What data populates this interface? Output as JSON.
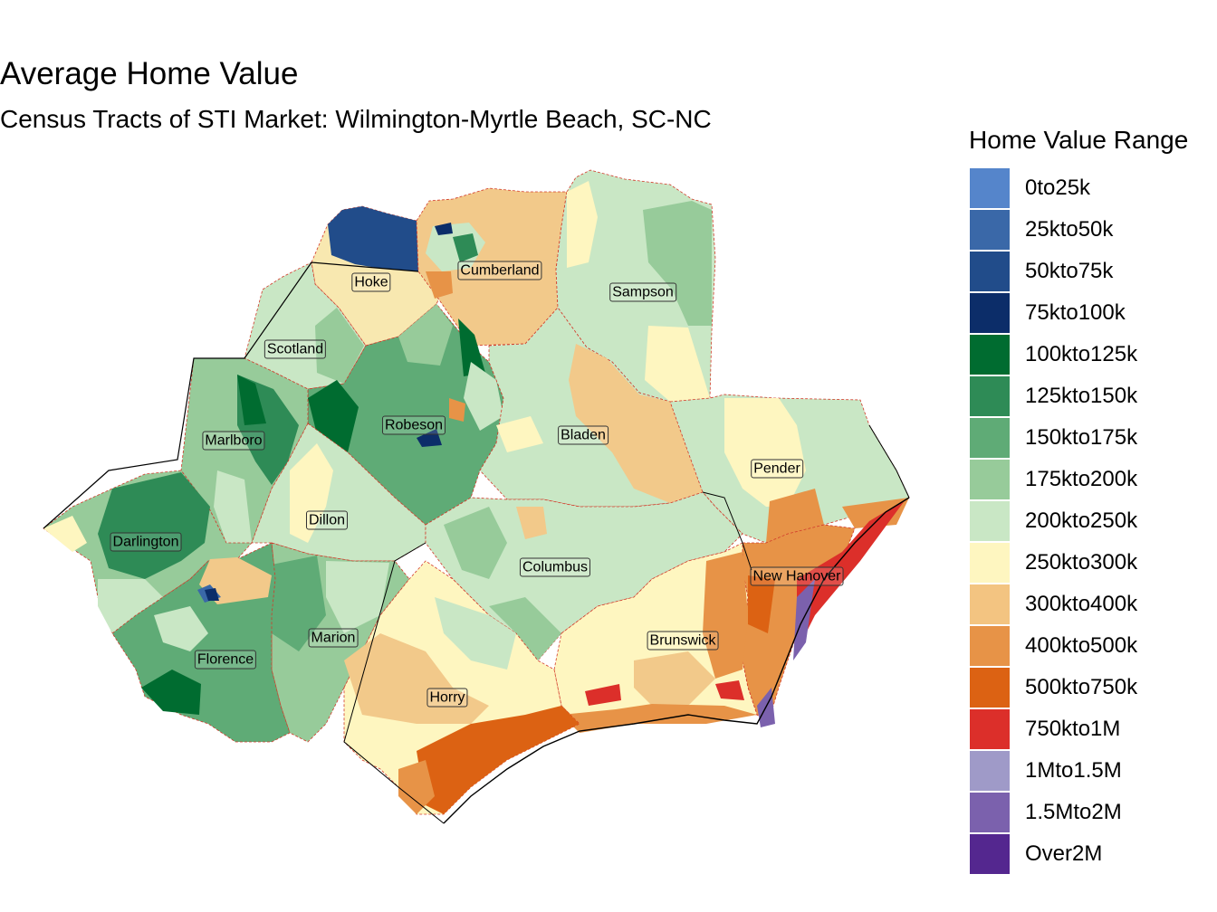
{
  "title": "Average Home Value",
  "subtitle": "Census Tracts of STI Market: Wilmington-Myrtle Beach, SC-NC",
  "legend": {
    "title": "Home Value Range",
    "items": [
      {
        "label": "0to25k",
        "color": "#5585cb"
      },
      {
        "label": "25kto50k",
        "color": "#3a68a8"
      },
      {
        "label": "50kto75k",
        "color": "#214c8a"
      },
      {
        "label": "75kto100k",
        "color": "#0c2d69"
      },
      {
        "label": "100kto125k",
        "color": "#006c30"
      },
      {
        "label": "125kto150k",
        "color": "#2e8b56"
      },
      {
        "label": "150kto175k",
        "color": "#5fab76"
      },
      {
        "label": "175kto200k",
        "color": "#97cb9a"
      },
      {
        "label": "200kto250k",
        "color": "#c9e7c5"
      },
      {
        "label": "250kto300k",
        "color": "#fef6c0"
      },
      {
        "label": "300kto400k",
        "color": "#f3c481"
      },
      {
        "label": "400kto500k",
        "color": "#e79347"
      },
      {
        "label": "500kto750k",
        "color": "#dc6213"
      },
      {
        "label": "750kto1M",
        "color": "#dc2f2a"
      },
      {
        "label": "1Mto1.5M",
        "color": "#9f9ac8"
      },
      {
        "label": "1.5Mto2M",
        "color": "#7b61ad"
      },
      {
        "label": "Over2M",
        "color": "#54278f"
      }
    ]
  },
  "counties": [
    "Hoke",
    "Cumberland",
    "Sampson",
    "Scotland",
    "Robeson",
    "Bladen",
    "Marlboro",
    "Pender",
    "Dillon",
    "Darlington",
    "Columbus",
    "New Hanover",
    "Marion",
    "Florence",
    "Brunswick",
    "Horry"
  ]
}
